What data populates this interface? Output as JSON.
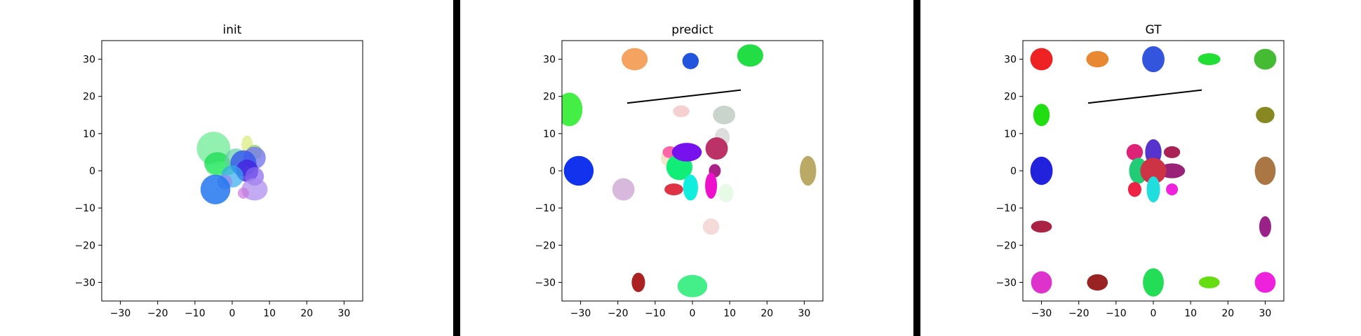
{
  "chart_data": [
    {
      "type": "scatter",
      "title": "init",
      "xlim": [
        -35,
        35
      ],
      "ylim": [
        -35,
        35
      ],
      "xticks": [
        "−30",
        "−20",
        "−10",
        "0",
        "10",
        "20",
        "30"
      ],
      "yticks": [
        "30",
        "20",
        "10",
        "0",
        "−10",
        "−20",
        "−30"
      ],
      "ellipses": [
        {
          "x": -5,
          "y": 6,
          "rx": 4.5,
          "ry": 4.5,
          "color": "#77ee9e",
          "opacity": 0.8
        },
        {
          "x": -4,
          "y": 2,
          "rx": 3.5,
          "ry": 3.0,
          "color": "#22dd55",
          "opacity": 0.8
        },
        {
          "x": -3,
          "y": 0.5,
          "rx": 4.0,
          "ry": 2.0,
          "color": "#44ee77",
          "opacity": 0.7
        },
        {
          "x": 4,
          "y": 7,
          "rx": 1.5,
          "ry": 2.5,
          "color": "#ddee88",
          "opacity": 0.8
        },
        {
          "x": 6,
          "y": 5,
          "rx": 2.0,
          "ry": 2.0,
          "color": "#99dd66",
          "opacity": 0.8
        },
        {
          "x": 1,
          "y": 3,
          "rx": 3.0,
          "ry": 3.0,
          "color": "#66ccaa",
          "opacity": 0.7
        },
        {
          "x": 6,
          "y": 3.5,
          "rx": 3.0,
          "ry": 3.0,
          "color": "#7777ee",
          "opacity": 0.8
        },
        {
          "x": 3,
          "y": 2,
          "rx": 3.5,
          "ry": 3.5,
          "color": "#3355ee",
          "opacity": 0.8
        },
        {
          "x": 4,
          "y": 0,
          "rx": 3.0,
          "ry": 3.0,
          "color": "#4422dd",
          "opacity": 0.8
        },
        {
          "x": 0,
          "y": -1.5,
          "rx": 3.0,
          "ry": 3.0,
          "color": "#33aaee",
          "opacity": 0.7
        },
        {
          "x": -2,
          "y": -3,
          "rx": 2.0,
          "ry": 2.0,
          "color": "#9988ee",
          "opacity": 0.7
        },
        {
          "x": -4.5,
          "y": -5,
          "rx": 4.0,
          "ry": 4.0,
          "color": "#2277ee",
          "opacity": 0.85
        },
        {
          "x": 6,
          "y": -1.5,
          "rx": 2.5,
          "ry": 2.5,
          "color": "#8866ee",
          "opacity": 0.7
        },
        {
          "x": 6,
          "y": -5,
          "rx": 3.5,
          "ry": 3.0,
          "color": "#aa88ee",
          "opacity": 0.7
        },
        {
          "x": 3,
          "y": -6,
          "rx": 1.5,
          "ry": 1.5,
          "color": "#cc77dd",
          "opacity": 0.7
        }
      ],
      "lines": []
    },
    {
      "type": "scatter",
      "title": "predict",
      "xlim": [
        -35,
        35
      ],
      "ylim": [
        -35,
        35
      ],
      "xticks": [
        "−30",
        "−20",
        "−10",
        "0",
        "10",
        "20",
        "30"
      ],
      "yticks": [
        "30",
        "20",
        "10",
        "0",
        "−10",
        "−20",
        "−30"
      ],
      "ellipses": [
        {
          "x": -15.5,
          "y": 30,
          "rx": 3.5,
          "ry": 3.0,
          "color": "#f4a460",
          "opacity": 1
        },
        {
          "x": -0.5,
          "y": 29.5,
          "rx": 2.2,
          "ry": 2.2,
          "color": "#2255dd",
          "opacity": 1
        },
        {
          "x": 15.5,
          "y": 31,
          "rx": 3.5,
          "ry": 3.0,
          "color": "#22dd44",
          "opacity": 1
        },
        {
          "x": -33,
          "y": 16.5,
          "rx": 3.5,
          "ry": 4.5,
          "color": "#44ee44",
          "opacity": 1
        },
        {
          "x": -30.5,
          "y": 0,
          "rx": 4.0,
          "ry": 4.0,
          "color": "#1133ee",
          "opacity": 1
        },
        {
          "x": -18.5,
          "y": -5,
          "rx": 3.0,
          "ry": 3.0,
          "color": "#d8b8dd",
          "opacity": 1
        },
        {
          "x": -3,
          "y": 16,
          "rx": 2.2,
          "ry": 1.6,
          "color": "#f5d0d0",
          "opacity": 1
        },
        {
          "x": 8.5,
          "y": 15,
          "rx": 3.0,
          "ry": 2.5,
          "color": "#c8d4cc",
          "opacity": 1
        },
        {
          "x": 8,
          "y": 9,
          "rx": 2.0,
          "ry": 2.5,
          "color": "#dddddd",
          "opacity": 1
        },
        {
          "x": 6.5,
          "y": 6,
          "rx": 3.0,
          "ry": 3.0,
          "color": "#bb3366",
          "opacity": 1
        },
        {
          "x": -6,
          "y": 3.5,
          "rx": 2.5,
          "ry": 2.5,
          "color": "#f3e6cc",
          "opacity": 1
        },
        {
          "x": -6,
          "y": 5,
          "rx": 2.0,
          "ry": 1.6,
          "color": "#ff66aa",
          "opacity": 1
        },
        {
          "x": -3.5,
          "y": 1,
          "rx": 3.5,
          "ry": 3.5,
          "color": "#11ee77",
          "opacity": 1
        },
        {
          "x": -1.5,
          "y": 5,
          "rx": 4.0,
          "ry": 2.5,
          "color": "#7711ee",
          "opacity": 1
        },
        {
          "x": 6,
          "y": 0,
          "rx": 1.6,
          "ry": 1.8,
          "color": "#aa2288",
          "opacity": 1
        },
        {
          "x": -5,
          "y": -5,
          "rx": 2.5,
          "ry": 1.6,
          "color": "#dd3344",
          "opacity": 1
        },
        {
          "x": -0.5,
          "y": -4.5,
          "rx": 2.0,
          "ry": 3.5,
          "color": "#11eedd",
          "opacity": 1
        },
        {
          "x": 5,
          "y": -4,
          "rx": 1.6,
          "ry": 3.5,
          "color": "#ee11cc",
          "opacity": 1
        },
        {
          "x": 9,
          "y": -6,
          "rx": 2.0,
          "ry": 2.5,
          "color": "#e6fae6",
          "opacity": 1
        },
        {
          "x": 31,
          "y": 0,
          "rx": 2.2,
          "ry": 4.0,
          "color": "#bbaa66",
          "opacity": 1
        },
        {
          "x": 5,
          "y": -15,
          "rx": 2.2,
          "ry": 2.2,
          "color": "#f5dada",
          "opacity": 1
        },
        {
          "x": -14.5,
          "y": -30,
          "rx": 1.8,
          "ry": 2.6,
          "color": "#aa2222",
          "opacity": 1
        },
        {
          "x": 0,
          "y": -31,
          "rx": 4.0,
          "ry": 3.0,
          "color": "#44ee88",
          "opacity": 1
        }
      ],
      "lines": [
        {
          "x1": -17.5,
          "y1": 18.2,
          "x2": 13,
          "y2": 21.7,
          "color": "#000000"
        }
      ]
    },
    {
      "type": "scatter",
      "title": "GT",
      "xlim": [
        -35,
        35
      ],
      "ylim": [
        -35,
        35
      ],
      "xticks": [
        "−30",
        "−20",
        "−10",
        "0",
        "10",
        "20",
        "30"
      ],
      "yticks": [
        "30",
        "20",
        "10",
        "0",
        "−10",
        "−20",
        "−30"
      ],
      "ellipses": [
        {
          "x": -30,
          "y": 30,
          "rx": 3.0,
          "ry": 3.0,
          "color": "#ee2222",
          "opacity": 1
        },
        {
          "x": -15,
          "y": 30,
          "rx": 3.0,
          "ry": 2.2,
          "color": "#e88833",
          "opacity": 1
        },
        {
          "x": 0,
          "y": 30,
          "rx": 3.0,
          "ry": 3.5,
          "color": "#3355dd",
          "opacity": 1
        },
        {
          "x": 15,
          "y": 30,
          "rx": 3.0,
          "ry": 1.6,
          "color": "#22dd33",
          "opacity": 1
        },
        {
          "x": 30,
          "y": 30,
          "rx": 3.0,
          "ry": 2.8,
          "color": "#44bb33",
          "opacity": 1
        },
        {
          "x": -30,
          "y": 15,
          "rx": 2.2,
          "ry": 3.0,
          "color": "#22dd11",
          "opacity": 1
        },
        {
          "x": 30,
          "y": 15,
          "rx": 2.5,
          "ry": 2.2,
          "color": "#888822",
          "opacity": 1
        },
        {
          "x": -30,
          "y": 0,
          "rx": 3.0,
          "ry": 3.8,
          "color": "#2222dd",
          "opacity": 1
        },
        {
          "x": 30,
          "y": 0,
          "rx": 2.8,
          "ry": 3.8,
          "color": "#aa7744",
          "opacity": 1
        },
        {
          "x": -30,
          "y": -15,
          "rx": 2.8,
          "ry": 1.6,
          "color": "#aa2244",
          "opacity": 1
        },
        {
          "x": 30,
          "y": -15,
          "rx": 1.6,
          "ry": 2.8,
          "color": "#992288",
          "opacity": 1
        },
        {
          "x": -30,
          "y": -30,
          "rx": 2.8,
          "ry": 3.0,
          "color": "#dd33cc",
          "opacity": 1
        },
        {
          "x": -15,
          "y": -30,
          "rx": 2.8,
          "ry": 2.2,
          "color": "#992222",
          "opacity": 1
        },
        {
          "x": 0,
          "y": -30,
          "rx": 2.8,
          "ry": 3.8,
          "color": "#22dd55",
          "opacity": 1
        },
        {
          "x": 15,
          "y": -30,
          "rx": 2.8,
          "ry": 1.6,
          "color": "#66dd11",
          "opacity": 1
        },
        {
          "x": 30,
          "y": -30,
          "rx": 2.8,
          "ry": 2.8,
          "color": "#ee22dd",
          "opacity": 1
        },
        {
          "x": -5,
          "y": 5,
          "rx": 2.2,
          "ry": 2.2,
          "color": "#dd2277",
          "opacity": 1
        },
        {
          "x": 0,
          "y": 5,
          "rx": 2.2,
          "ry": 3.5,
          "color": "#5533cc",
          "opacity": 1
        },
        {
          "x": 5,
          "y": 5,
          "rx": 2.2,
          "ry": 1.6,
          "color": "#aa2255",
          "opacity": 1
        },
        {
          "x": -4,
          "y": 0,
          "rx": 2.5,
          "ry": 3.5,
          "color": "#22cc77",
          "opacity": 1
        },
        {
          "x": 5,
          "y": 0,
          "rx": 3.5,
          "ry": 2.0,
          "color": "#992277",
          "opacity": 1
        },
        {
          "x": 0,
          "y": 0,
          "rx": 3.5,
          "ry": 3.5,
          "color": "#cc3344",
          "opacity": 1
        },
        {
          "x": -5,
          "y": -5,
          "rx": 1.8,
          "ry": 2.0,
          "color": "#ee2244",
          "opacity": 1
        },
        {
          "x": 0,
          "y": -5,
          "rx": 1.8,
          "ry": 3.5,
          "color": "#22dddd",
          "opacity": 1
        },
        {
          "x": 5,
          "y": -5,
          "rx": 1.6,
          "ry": 1.6,
          "color": "#ee22dd",
          "opacity": 1
        }
      ],
      "lines": [
        {
          "x1": -17.5,
          "y1": 18.2,
          "x2": 13,
          "y2": 21.7,
          "color": "#000000"
        }
      ]
    }
  ]
}
